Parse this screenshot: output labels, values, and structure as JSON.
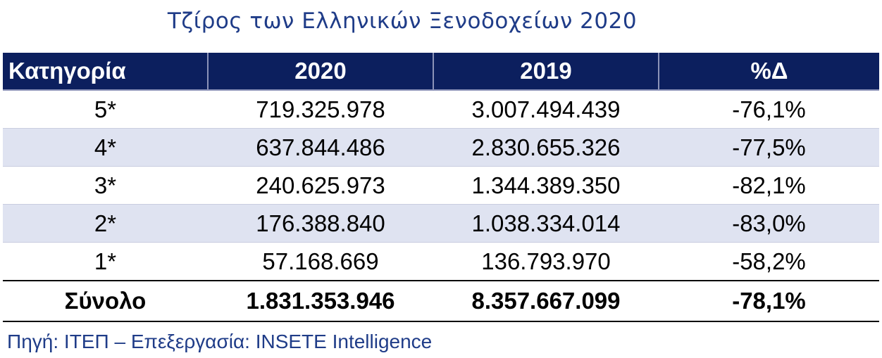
{
  "chart_data": {
    "type": "table",
    "title": "Τζίρος των Ελληνικών Ξενοδοχείων 2020",
    "columns": [
      "Κατηγορία",
      "2020",
      "2019",
      "%Δ"
    ],
    "rows": [
      [
        "5*",
        "719.325.978",
        "3.007.494.439",
        "-76,1%"
      ],
      [
        "4*",
        "637.844.486",
        "2.830.655.326",
        "-77,5%"
      ],
      [
        "3*",
        "240.625.973",
        "1.344.389.350",
        "-82,1%"
      ],
      [
        "2*",
        "176.388.840",
        "1.038.334.014",
        "-83,0%"
      ],
      [
        "1*",
        "57.168.669",
        "136.793.970",
        "-58,2%"
      ]
    ],
    "total": [
      "Σύνολο",
      "1.831.353.946",
      "8.357.667.099",
      "-78,1%"
    ],
    "source": "Πηγή: ΙΤΕΠ – Επεξεργασία: INSETE Intelligence"
  },
  "colors": {
    "header_bg": "#0c1f5e",
    "stripe_bg": "#dfe3f1",
    "title_text": "#1f3c88"
  }
}
